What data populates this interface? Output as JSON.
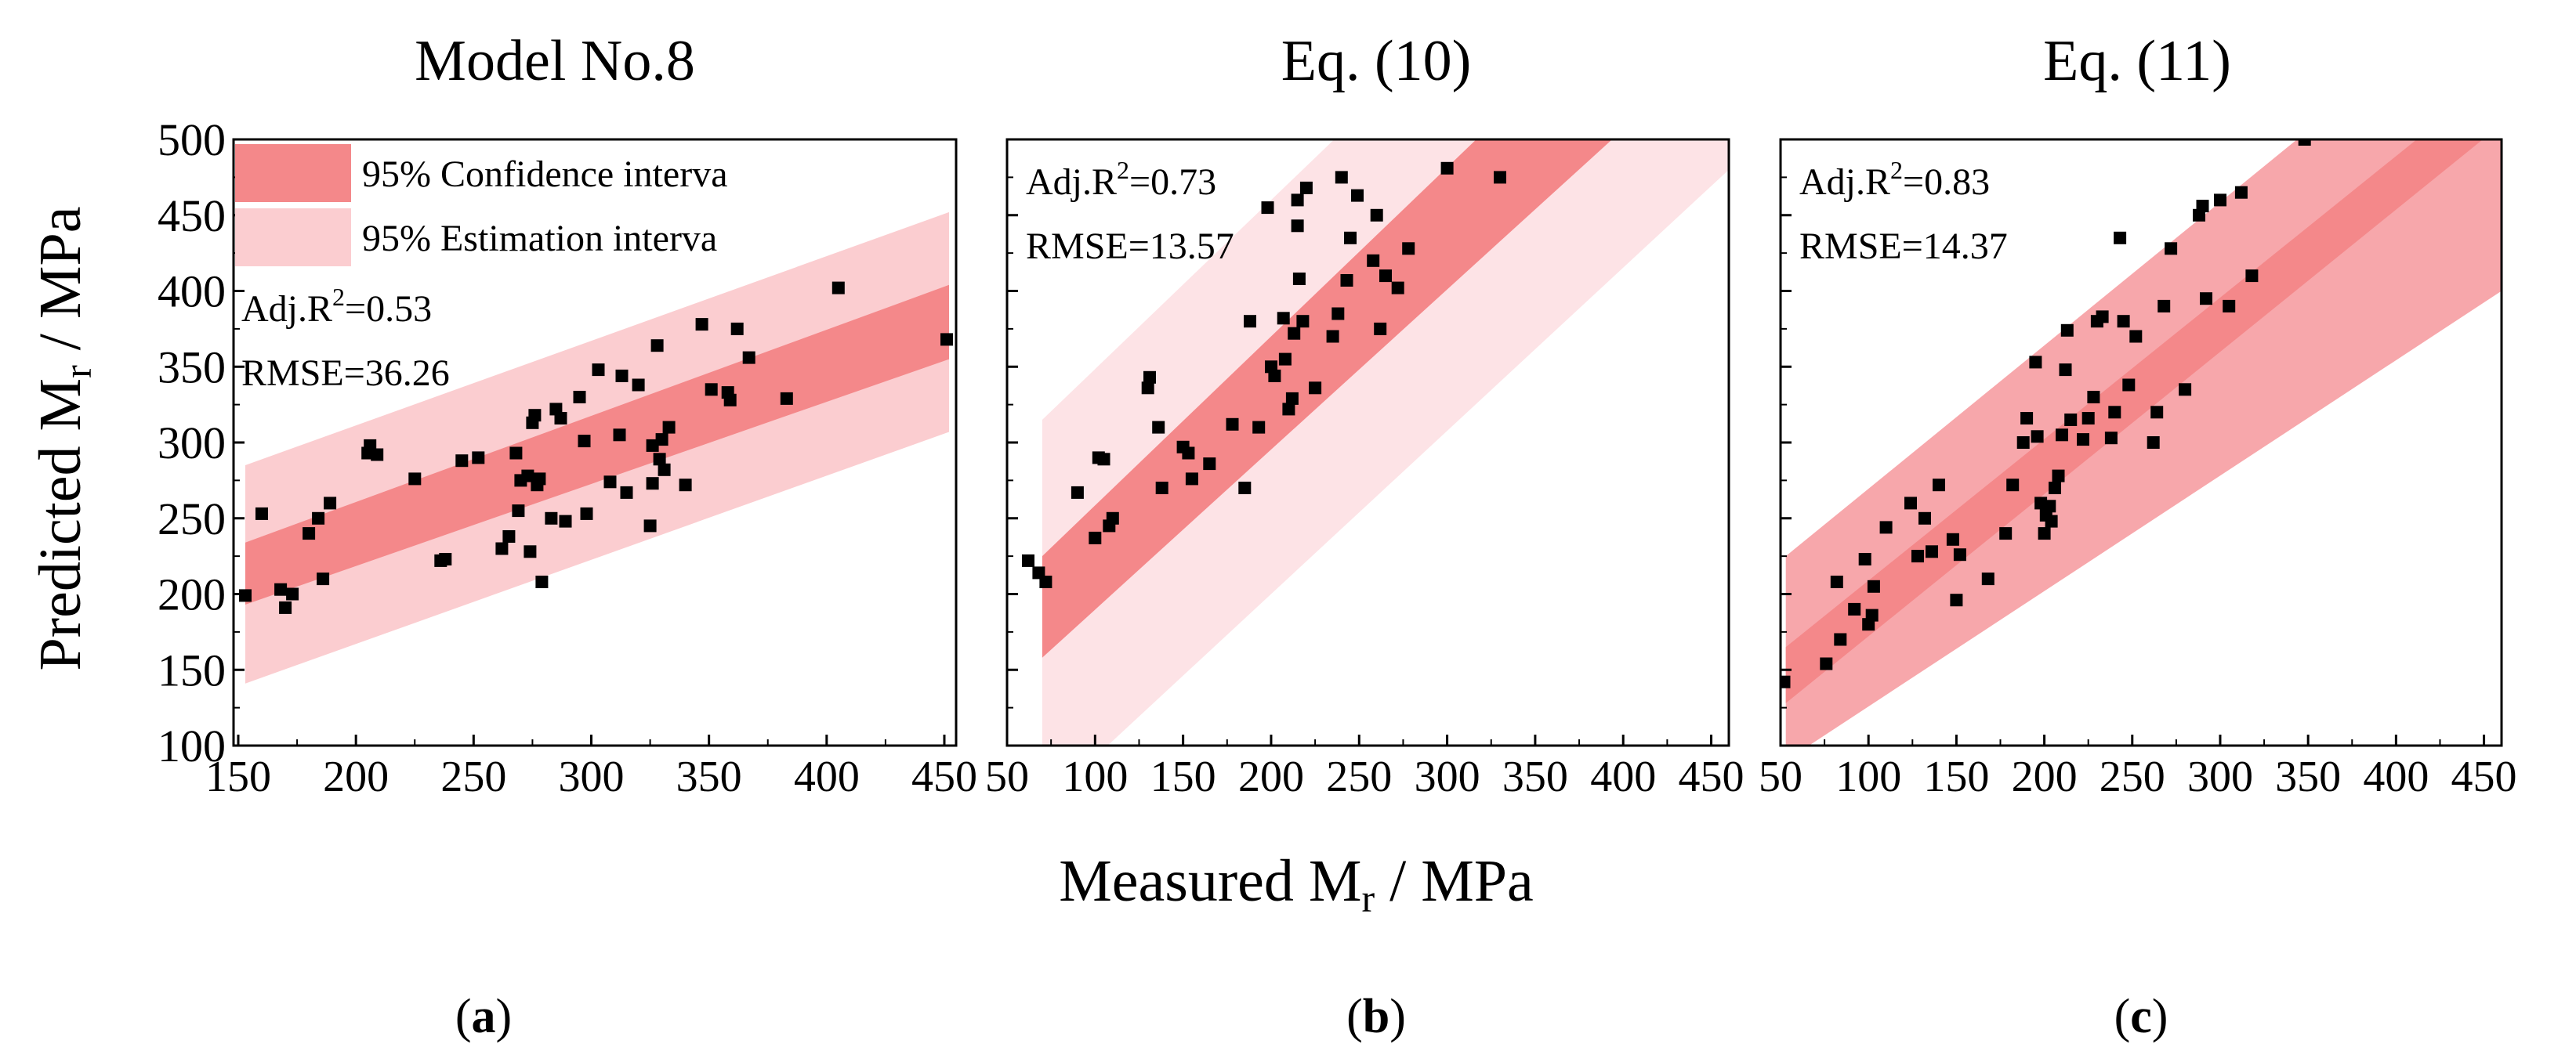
{
  "figure": {
    "y_axis_label": "Predicted M",
    "y_axis_label_sub": "r",
    "y_axis_label_unit": " / MPa",
    "x_axis_label": "Measured M",
    "x_axis_label_sub": "r",
    "x_axis_label_unit": " / MPa"
  },
  "legend": {
    "confidence_label": "95% Confidence interva",
    "estimation_label": "95% Estimation interva"
  },
  "colors": {
    "confidence_band": "#f4888a",
    "estimation_band": "#fbcdd0",
    "estimation_band_c": "#f7a7ab",
    "estimation_band_b": "#fde3e6",
    "points": "#000000"
  },
  "chart_data": [
    {
      "type": "scatter",
      "panel_label": "(a)",
      "title": "Model No.8",
      "xlabel": "Measured Mr / MPa",
      "ylabel": "Predicted Mr / MPa",
      "xlim": [
        148,
        455
      ],
      "ylim": [
        100,
        500
      ],
      "xticks": [
        150,
        200,
        250,
        300,
        350,
        400,
        450
      ],
      "xtick_labels": [
        "150",
        "200",
        "250",
        "300",
        "350",
        "400",
        "450"
      ],
      "yticks": [
        100,
        150,
        200,
        250,
        300,
        350,
        400,
        450,
        500
      ],
      "ytick_labels": [
        "100",
        "150",
        "200",
        "250",
        "300",
        "350",
        "400",
        "450",
        "500"
      ],
      "annotations": {
        "adj_r2_prefix": "Adj.R",
        "adj_r2_sup": "2",
        "adj_r2_value": "=0.53",
        "rmse": "RMSE=36.26"
      },
      "bands": {
        "x_range": [
          153,
          452
        ],
        "confidence_upper": [
          234,
          404
        ],
        "confidence_lower": [
          193,
          355
        ],
        "estimation_upper": [
          285,
          452
        ],
        "estimation_lower": [
          141,
          307
        ]
      },
      "points": [
        [
          153,
          199
        ],
        [
          160,
          253
        ],
        [
          168,
          203
        ],
        [
          170,
          191
        ],
        [
          173,
          200
        ],
        [
          180,
          240
        ],
        [
          184,
          250
        ],
        [
          186,
          210
        ],
        [
          189,
          260
        ],
        [
          205,
          293
        ],
        [
          206,
          298
        ],
        [
          209,
          292
        ],
        [
          225,
          276
        ],
        [
          236,
          222
        ],
        [
          238,
          223
        ],
        [
          245,
          288
        ],
        [
          252,
          290
        ],
        [
          262,
          230
        ],
        [
          265,
          238
        ],
        [
          268,
          293
        ],
        [
          269,
          255
        ],
        [
          270,
          275
        ],
        [
          273,
          278
        ],
        [
          274,
          228
        ],
        [
          275,
          313
        ],
        [
          276,
          318
        ],
        [
          277,
          272
        ],
        [
          278,
          276
        ],
        [
          279,
          208
        ],
        [
          283,
          250
        ],
        [
          285,
          322
        ],
        [
          287,
          316
        ],
        [
          289,
          248
        ],
        [
          295,
          330
        ],
        [
          297,
          301
        ],
        [
          298,
          253
        ],
        [
          303,
          348
        ],
        [
          308,
          274
        ],
        [
          312,
          305
        ],
        [
          313,
          344
        ],
        [
          315,
          267
        ],
        [
          320,
          338
        ],
        [
          325,
          245
        ],
        [
          326,
          273
        ],
        [
          326,
          298
        ],
        [
          328,
          364
        ],
        [
          329,
          289
        ],
        [
          330,
          302
        ],
        [
          331,
          282
        ],
        [
          333,
          310
        ],
        [
          340,
          272
        ],
        [
          347,
          378
        ],
        [
          351,
          335
        ],
        [
          358,
          333
        ],
        [
          359,
          328
        ],
        [
          362,
          375
        ],
        [
          367,
          356
        ],
        [
          383,
          329
        ],
        [
          405,
          402
        ],
        [
          451,
          368
        ]
      ]
    },
    {
      "type": "scatter",
      "panel_label": "(b)",
      "title": "Eq. (10)",
      "xlabel": "Measured Mr / MPa",
      "ylabel": "Predicted Mr / MPa",
      "xlim": [
        50,
        460
      ],
      "ylim": [
        100,
        500
      ],
      "xticks": [
        50,
        100,
        150,
        200,
        250,
        300,
        350,
        400,
        450
      ],
      "xtick_labels": [
        "50",
        "100",
        "150",
        "200",
        "250",
        "300",
        "350",
        "400",
        "450"
      ],
      "yticks": [
        100,
        150,
        200,
        250,
        300,
        350,
        400,
        450,
        500
      ],
      "annotations": {
        "adj_r2_prefix": "Adj.R",
        "adj_r2_sup": "2",
        "adj_r2_value": "=0.73",
        "rmse": "RMSE=13.57"
      },
      "bands": {
        "x_range": [
          70,
          460
        ],
        "confidence_upper": [
          225,
          660
        ],
        "confidence_lower": [
          158,
          570
        ],
        "estimation_upper": [
          315,
          750
        ],
        "estimation_lower": [
          60,
          480
        ]
      },
      "points": [
        [
          62,
          222
        ],
        [
          68,
          214
        ],
        [
          72,
          208
        ],
        [
          90,
          267
        ],
        [
          100,
          237
        ],
        [
          102,
          290
        ],
        [
          105,
          289
        ],
        [
          108,
          245
        ],
        [
          110,
          250
        ],
        [
          130,
          336
        ],
        [
          131,
          343
        ],
        [
          136,
          310
        ],
        [
          138,
          270
        ],
        [
          150,
          297
        ],
        [
          153,
          293
        ],
        [
          155,
          276
        ],
        [
          165,
          286
        ],
        [
          178,
          312
        ],
        [
          185,
          270
        ],
        [
          188,
          380
        ],
        [
          193,
          310
        ],
        [
          198,
          455
        ],
        [
          200,
          350
        ],
        [
          202,
          344
        ],
        [
          207,
          382
        ],
        [
          208,
          355
        ],
        [
          210,
          322
        ],
        [
          212,
          329
        ],
        [
          213,
          372
        ],
        [
          215,
          460
        ],
        [
          215,
          443
        ],
        [
          216,
          408
        ],
        [
          218,
          380
        ],
        [
          220,
          468
        ],
        [
          225,
          336
        ],
        [
          235,
          370
        ],
        [
          238,
          385
        ],
        [
          240,
          475
        ],
        [
          243,
          407
        ],
        [
          245,
          435
        ],
        [
          249,
          463
        ],
        [
          258,
          420
        ],
        [
          260,
          450
        ],
        [
          262,
          375
        ],
        [
          265,
          410
        ],
        [
          272,
          402
        ],
        [
          278,
          428
        ],
        [
          300,
          481
        ],
        [
          330,
          475
        ]
      ]
    },
    {
      "type": "scatter",
      "panel_label": "(c)",
      "title": "Eq. (11)",
      "xlabel": "Measured Mr / MPa",
      "ylabel": "Predicted Mr / MPa",
      "xlim": [
        50,
        460
      ],
      "ylim": [
        100,
        500
      ],
      "xticks": [
        50,
        100,
        150,
        200,
        250,
        300,
        350,
        400,
        450
      ],
      "xtick_labels": [
        "50",
        "100",
        "150",
        "200",
        "250",
        "300",
        "350",
        "400",
        "450"
      ],
      "yticks": [
        100,
        150,
        200,
        250,
        300,
        350,
        400,
        450,
        500
      ],
      "annotations": {
        "adj_r2_prefix": "Adj.R",
        "adj_r2_sup": "2",
        "adj_r2_value": "=0.83",
        "rmse": "RMSE=14.37"
      },
      "bands": {
        "x_range": [
          53,
          460
        ],
        "confidence_upper": [
          165,
          545
        ],
        "confidence_lower": [
          128,
          510
        ],
        "estimation_upper": [
          225,
          610
        ],
        "estimation_lower": [
          90,
          400
        ]
      },
      "points": [
        [
          52,
          142
        ],
        [
          76,
          154
        ],
        [
          82,
          208
        ],
        [
          84,
          170
        ],
        [
          92,
          190
        ],
        [
          98,
          223
        ],
        [
          100,
          180
        ],
        [
          102,
          186
        ],
        [
          103,
          205
        ],
        [
          110,
          244
        ],
        [
          124,
          260
        ],
        [
          128,
          225
        ],
        [
          132,
          250
        ],
        [
          136,
          228
        ],
        [
          140,
          272
        ],
        [
          148,
          236
        ],
        [
          150,
          196
        ],
        [
          152,
          226
        ],
        [
          168,
          210
        ],
        [
          178,
          240
        ],
        [
          182,
          272
        ],
        [
          188,
          300
        ],
        [
          190,
          316
        ],
        [
          195,
          353
        ],
        [
          196,
          304
        ],
        [
          198,
          260
        ],
        [
          200,
          240
        ],
        [
          201,
          252
        ],
        [
          203,
          258
        ],
        [
          204,
          248
        ],
        [
          206,
          270
        ],
        [
          208,
          278
        ],
        [
          210,
          305
        ],
        [
          212,
          348
        ],
        [
          213,
          374
        ],
        [
          215,
          315
        ],
        [
          222,
          302
        ],
        [
          225,
          316
        ],
        [
          228,
          330
        ],
        [
          230,
          380
        ],
        [
          233,
          383
        ],
        [
          238,
          303
        ],
        [
          240,
          320
        ],
        [
          243,
          435
        ],
        [
          245,
          380
        ],
        [
          248,
          338
        ],
        [
          252,
          370
        ],
        [
          262,
          300
        ],
        [
          264,
          320
        ],
        [
          268,
          390
        ],
        [
          272,
          428
        ],
        [
          280,
          335
        ],
        [
          288,
          450
        ],
        [
          290,
          456
        ],
        [
          292,
          395
        ],
        [
          300,
          460
        ],
        [
          305,
          390
        ],
        [
          312,
          465
        ],
        [
          318,
          410
        ],
        [
          348,
          500
        ]
      ]
    }
  ]
}
